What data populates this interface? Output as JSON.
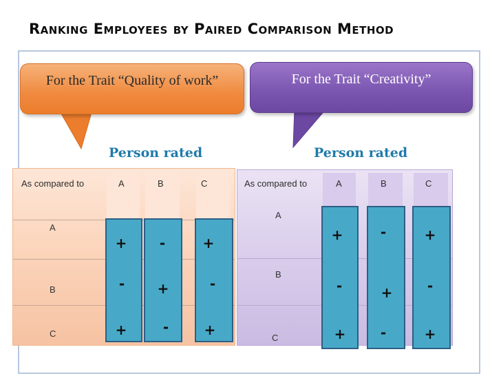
{
  "title": "Ranking Employees by Paired Comparison Method",
  "callouts": {
    "left": "For the Trait “Quality of work”",
    "right": "For the Trait “Creativity”"
  },
  "headings": {
    "left": "Person rated",
    "right": "Person rated"
  },
  "tables": {
    "left": {
      "compare_label": "As compared to",
      "columns": [
        "A",
        "B",
        "C"
      ],
      "rows": [
        "A",
        "B",
        "C"
      ],
      "cells": [
        [
          "+",
          "-",
          "+"
        ],
        [
          "-",
          "+",
          "-"
        ],
        [
          "+",
          "-",
          "+"
        ]
      ]
    },
    "right": {
      "compare_label": "As compared to",
      "columns": [
        "A",
        "B",
        "C"
      ],
      "rows": [
        "A",
        "B",
        "C"
      ],
      "cells": [
        [
          "+",
          "-",
          "+"
        ],
        [
          "-",
          "+",
          "-"
        ],
        [
          "+",
          "-",
          "+"
        ]
      ]
    }
  },
  "colors": {
    "orange": "#ec7d2c",
    "purple": "#7a55b0",
    "teal": "#47a9c7",
    "heading_blue": "#1f7aaa"
  }
}
